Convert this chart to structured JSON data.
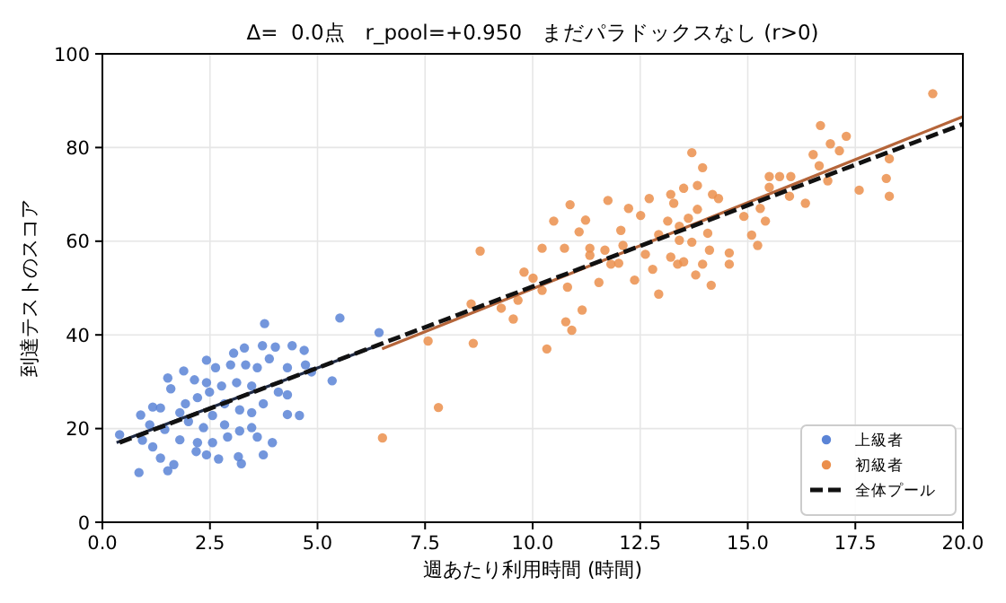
{
  "chart_data": {
    "type": "scatter",
    "title": "Δ=  0.0点   r_pool=+0.950   まだパラドックスなし (r>0)",
    "xlabel": "週あたり利用時間 (時間)",
    "ylabel": "到達テストのスコア",
    "xlim": [
      0,
      20
    ],
    "ylim": [
      0,
      100
    ],
    "xticks": [
      {
        "value": 0,
        "label": "0.0"
      },
      {
        "value": 2.5,
        "label": "2.5"
      },
      {
        "value": 5,
        "label": "5.0"
      },
      {
        "value": 7.5,
        "label": "7.5"
      },
      {
        "value": 10,
        "label": "10.0"
      },
      {
        "value": 12.5,
        "label": "12.5"
      },
      {
        "value": 15,
        "label": "15.0"
      },
      {
        "value": 17.5,
        "label": "17.5"
      },
      {
        "value": 20,
        "label": "20.0"
      }
    ],
    "yticks": [
      0,
      20,
      40,
      60,
      80,
      100
    ],
    "grid": true,
    "legend": "bottom right",
    "series": [
      {
        "name": "上級者",
        "marker": "circle",
        "color": "#5b84d6",
        "x": [
          5.52,
          3.77,
          0.4,
          0.85,
          1.52,
          2.42,
          3.05,
          3.3,
          3.72,
          4.02,
          4.41,
          4.69,
          4.72,
          4.3,
          5.34,
          4.86,
          4.58,
          4.3,
          3.95,
          3.74,
          3.23,
          3.16,
          2.7,
          2.42,
          2.18,
          1.66,
          1.52,
          1.35,
          1.17,
          0.93,
          0.89,
          1.17,
          1.35,
          1.59,
          1.89,
          2.14,
          2.42,
          2.63,
          2.98,
          3.33,
          3.6,
          3.88,
          3.47,
          3.12,
          2.77,
          2.49,
          2.21,
          1.93,
          1.8,
          2.0,
          2.35,
          2.56,
          2.84,
          3.19,
          3.47,
          3.74,
          4.09,
          4.3,
          3.47,
          2.91,
          2.56,
          2.21,
          1.8,
          1.45,
          1.1,
          3.6,
          3.19,
          2.84,
          6.43
        ],
        "values": [
          43.6,
          42.4,
          18.7,
          10.6,
          30.8,
          34.6,
          36.1,
          37.2,
          37.7,
          37.4,
          37.7,
          36.7,
          33.6,
          33,
          30.2,
          32.1,
          22.8,
          23,
          17,
          14.4,
          12.5,
          14,
          13.5,
          14.4,
          15.1,
          12.3,
          11,
          13.7,
          16.1,
          17.5,
          22.9,
          24.6,
          24.4,
          28.5,
          32.3,
          30.4,
          29.8,
          33,
          33.6,
          33.6,
          33,
          34.9,
          29.1,
          29.8,
          29.1,
          27.8,
          26.6,
          25.3,
          23.4,
          21.5,
          20.2,
          22.8,
          25.3,
          24,
          23.4,
          25.3,
          27.8,
          27.2,
          20.2,
          18.2,
          17,
          17,
          17.6,
          19.8,
          20.8,
          18.2,
          19.5,
          20.8,
          40.5
        ]
      },
      {
        "name": "初級者",
        "marker": "circle",
        "color": "#eb8f4c",
        "x": [
          6.51,
          7.81,
          7.57,
          8.62,
          8.57,
          8.78,
          9.27,
          9.55,
          9.66,
          9.8,
          10.01,
          10.22,
          10.22,
          10.33,
          10.49,
          10.74,
          10.77,
          10.91,
          10.81,
          10.87,
          11.08,
          11.15,
          11.23,
          11.33,
          11.33,
          11.54,
          11.68,
          11.75,
          11.82,
          12.0,
          12.05,
          12.1,
          12.23,
          12.37,
          12.51,
          12.62,
          12.71,
          12.79,
          12.93,
          19.3,
          16.69,
          17.29,
          16.92,
          17.13,
          16.52,
          16.66,
          18.29,
          18.22,
          18.29,
          17.59,
          16.86,
          16.34,
          16.0,
          15.74,
          15.5,
          15.5,
          15.97,
          15.29,
          15.41,
          14.91,
          15.09,
          15.23,
          14.57,
          14.57,
          14.15,
          13.95,
          13.79,
          14.11,
          14.07,
          13.83,
          14.18,
          14.32,
          13.95,
          13.7,
          13.83,
          13.51,
          13.21,
          13.28,
          13.62,
          13.41,
          13.14,
          12.93,
          13.41,
          13.7,
          13.21,
          13.51,
          13.37
        ],
        "values": [
          18.0,
          24.5,
          38.7,
          38.2,
          46.6,
          57.9,
          45.7,
          43.4,
          47.4,
          53.4,
          52.1,
          58.5,
          49.5,
          37,
          64.3,
          58.5,
          42.8,
          41,
          50.2,
          67.8,
          62,
          45.3,
          64.5,
          58.5,
          57,
          51.2,
          58.1,
          68.7,
          55.1,
          55.3,
          62.3,
          59.1,
          67,
          51.7,
          65.5,
          57.2,
          69.1,
          54,
          48.7,
          91.5,
          84.7,
          82.4,
          80.8,
          79.3,
          78.5,
          76.1,
          77.6,
          73.4,
          69.6,
          70.9,
          72.9,
          68.1,
          73.8,
          73.8,
          73.8,
          71.5,
          69.6,
          67,
          64.3,
          65.3,
          61.3,
          59.1,
          57.5,
          55.1,
          50.6,
          55.1,
          52.8,
          58.1,
          61.7,
          66.8,
          70,
          69.1,
          75.7,
          78.9,
          71.9,
          71.3,
          70,
          68.1,
          64.9,
          63.2,
          64.3,
          61.4,
          60.2,
          59.8,
          56.6,
          55.6,
          55.1
        ]
      },
      {
        "type": "line",
        "color": "#1f2a44",
        "line_style": "solid",
        "x": [
          0.33,
          6.39
        ],
        "values": [
          17,
          37.7
        ]
      },
      {
        "type": "line",
        "color": "#b5653a",
        "line_style": "solid",
        "x": [
          6.5,
          20
        ],
        "values": [
          37,
          86.6
        ]
      },
      {
        "name": "全体プール",
        "type": "line",
        "color": "#111111",
        "line_style": "dashed",
        "x": [
          0.4,
          20
        ],
        "values": [
          17,
          85
        ]
      }
    ]
  }
}
